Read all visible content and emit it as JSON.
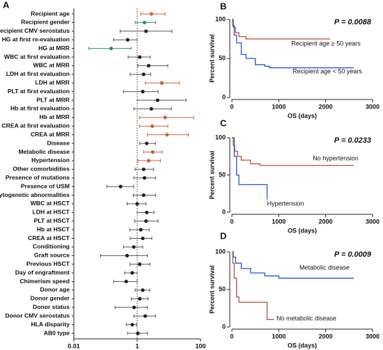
{
  "chart_data": [
    {
      "type": "forest",
      "panel": "A",
      "categories": [
        "Recipient age",
        "Recipient gender",
        "Recipient CMV serostatus",
        "HG at first re-evaluation",
        "HG at MRR",
        "WBC at first evaluation",
        "WBC at MRR",
        "LDH at first evaluation",
        "LDH at MRR",
        "PLT at first evaluation",
        "PLT at MRR",
        "Hb at first evaluation",
        "Hb at MRR",
        "CREA at first evaluation",
        "CREA at MRR",
        "Disease",
        "Metabolic disease",
        "Hypertension",
        "Other comorbidities",
        "Presence of mutations",
        "Presence of USM",
        "Cytogenetic abnormalities",
        "WBC at HSCT",
        "LDH at HSCT",
        "PLT at HSCT",
        "Hb at HSCT",
        "CREA at HSCT",
        "Conditioning",
        "Graft source",
        "Previous HSCT",
        "Day of engraftment",
        "Chimerism speed",
        "Donor age",
        "Donor gender",
        "Donor status",
        "Donor CMV serostatus",
        "HLA disparity",
        "AB0 type"
      ],
      "values": [
        2.8,
        1.7,
        1.9,
        0.5,
        0.15,
        1.2,
        2.3,
        1.6,
        6,
        1.5,
        4.4,
        2.8,
        7.6,
        3,
        8.8,
        2,
        3.1,
        2.3,
        1.6,
        1.7,
        0.3,
        1.6,
        1,
        2,
        1.9,
        1.3,
        1.5,
        0.78,
        0.48,
        1.2,
        0.7,
        0.45,
        1.5,
        1.2,
        0.8,
        1.8,
        0.7,
        1.05
      ],
      "lower": [
        1.3,
        0.86,
        0.29,
        0.18,
        0.03,
        0.52,
        1.05,
        0.6,
        1.8,
        0.37,
        1,
        0.78,
        1.2,
        1.2,
        2.1,
        1.2,
        1.6,
        1.05,
        0.86,
        0.78,
        0.11,
        0.75,
        0.48,
        1,
        0.83,
        0.58,
        0.6,
        0.37,
        0.07,
        0.6,
        0.4,
        0.18,
        0.86,
        0.65,
        0.2,
        0.78,
        0.45,
        0.5
      ],
      "upper": [
        7.6,
        3.8,
        12.5,
        1,
        0.64,
        2.6,
        9.3,
        2.7,
        21.6,
        4.6,
        35,
        12,
        61,
        9.3,
        41,
        3.8,
        6.2,
        5.4,
        3.3,
        3.8,
        0.78,
        3.8,
        1.9,
        3.4,
        4.6,
        2.4,
        2.9,
        1.5,
        2.1,
        2.5,
        1,
        1,
        2.5,
        2.2,
        2.1,
        3.8,
        0.95,
        2.1
      ],
      "point_colors": [
        "#c8643c",
        "#2e8b75",
        "#222",
        "#222",
        "#2e8b75",
        "#222",
        "#222",
        "#222",
        "#c8643c",
        "#222",
        "#222",
        "#222",
        "#c8643c",
        "#c8643c",
        "#c8643c",
        "#222",
        "#c8643c",
        "#c8643c",
        "#222",
        "#222",
        "#222",
        "#222",
        "#222",
        "#222",
        "#222",
        "#222",
        "#222",
        "#222",
        "#222",
        "#222",
        "#222",
        "#222",
        "#222",
        "#222",
        "#222",
        "#222",
        "#222",
        "#222"
      ],
      "log_x": true,
      "xlim": [
        0.01,
        100
      ],
      "xticks": [
        0.01,
        1,
        100
      ],
      "reference_line": 1
    },
    {
      "type": "survival",
      "panel": "B",
      "annotation": "P = 0.0088",
      "xlabel": "OS (days)",
      "ylabel": "Percent survival",
      "xlim": [
        0,
        3000
      ],
      "ylim": [
        0,
        100
      ],
      "xticks": [
        0,
        1000,
        2000,
        3000
      ],
      "yticks": [
        0,
        50,
        100
      ],
      "series": [
        {
          "name": "Recipient age ≥ 50 years",
          "color": "#b5533c",
          "x": [
            0,
            30,
            80,
            150,
            300,
            2100
          ],
          "values": [
            100,
            90,
            83,
            78,
            75,
            75
          ]
        },
        {
          "name": "Recipient age < 50 years",
          "color": "#2255cc",
          "x": [
            0,
            20,
            50,
            100,
            200,
            300,
            500,
            700,
            800,
            2600
          ],
          "values": [
            100,
            92,
            80,
            70,
            55,
            50,
            42,
            40,
            38,
            38
          ]
        }
      ]
    },
    {
      "type": "survival",
      "panel": "C",
      "annotation": "P = 0.0233",
      "xlabel": "OS (days)",
      "ylabel": "Percent survival",
      "xlim": [
        0,
        3000
      ],
      "ylim": [
        0,
        100
      ],
      "xticks": [
        0,
        1000,
        2000,
        3000
      ],
      "yticks": [
        0,
        50,
        100
      ],
      "series": [
        {
          "name": "No hypertension",
          "color": "#b5533c",
          "x": [
            0,
            30,
            60,
            120,
            200,
            400,
            600,
            2600
          ],
          "values": [
            100,
            90,
            82,
            75,
            70,
            65,
            63,
            63
          ]
        },
        {
          "name": "Hypertension",
          "color": "#2255cc",
          "x": [
            0,
            50,
            100,
            150,
            700,
            750
          ],
          "values": [
            100,
            75,
            50,
            37,
            37,
            17
          ]
        }
      ]
    },
    {
      "type": "survival",
      "panel": "D",
      "annotation": "P = 0.0009",
      "xlabel": "OS (days)",
      "ylabel": "Percent survival",
      "xlim": [
        0,
        3000
      ],
      "ylim": [
        0,
        100
      ],
      "xticks": [
        0,
        1000,
        2000,
        3000
      ],
      "yticks": [
        0,
        50,
        100
      ],
      "series": [
        {
          "name": "Metabolic disease",
          "color": "#2255cc",
          "x": [
            0,
            30,
            80,
            200,
            400,
            700,
            1000,
            2600
          ],
          "values": [
            100,
            93,
            85,
            78,
            72,
            68,
            65,
            65
          ]
        },
        {
          "name": "No metabolic disease",
          "color": "#b5533c",
          "x": [
            0,
            20,
            50,
            100,
            150,
            700,
            750,
            900
          ],
          "values": [
            100,
            85,
            65,
            40,
            33,
            33,
            10,
            10
          ]
        }
      ]
    }
  ]
}
